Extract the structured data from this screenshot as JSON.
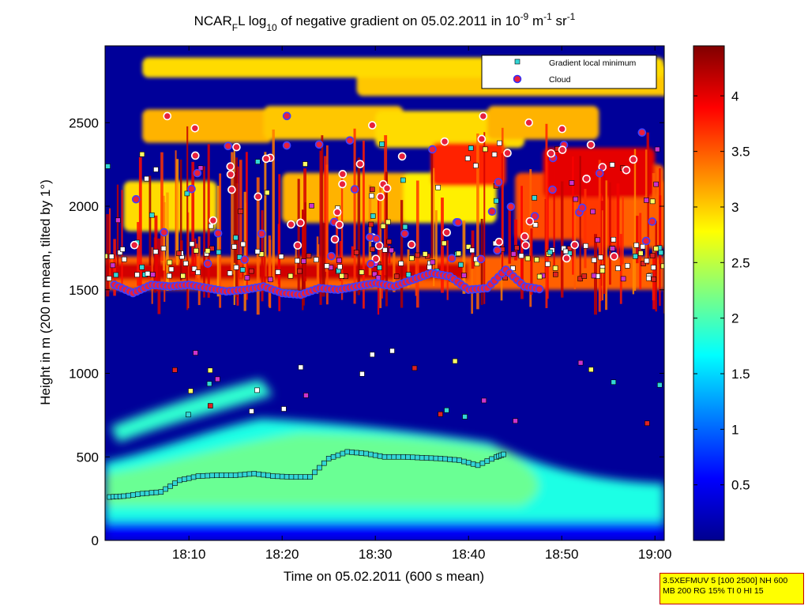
{
  "chart_data": {
    "type": "heatmap",
    "title": {
      "parts": [
        {
          "text": "NCAR"
        },
        {
          "text": "F",
          "sub": true
        },
        {
          "text": "L log"
        },
        {
          "text": "10",
          "sub": true
        },
        {
          "text": " of negative gradient on 05.02.2011 in 10"
        },
        {
          "text": "-9",
          "sup": true
        },
        {
          "text": " m"
        },
        {
          "text": "-1",
          "sup": true
        },
        {
          "text": " sr"
        },
        {
          "text": "-1",
          "sup": true
        }
      ]
    },
    "xlabel": "Time on 05.02.2011 (600 s mean)",
    "ylabel": "Height in m (200 m mean, tilted by 1°)",
    "x_tick_labels": [
      "18:10",
      "18:20",
      "18:30",
      "18:40",
      "18:50",
      "19:00"
    ],
    "x_tick_minutes": [
      10,
      20,
      30,
      40,
      50,
      60
    ],
    "x_range_minutes": [
      1,
      61
    ],
    "y_ticks": [
      0,
      500,
      1000,
      1500,
      2000,
      2500
    ],
    "y_range": [
      0,
      2960
    ],
    "colorbar": {
      "ticks": [
        0.5,
        1,
        1.5,
        2,
        2.5,
        3,
        3.5,
        4
      ],
      "tick_labels": [
        "0.5",
        "1",
        "1.5",
        "2",
        "2.5",
        "3",
        "3.5",
        "4"
      ],
      "range": [
        0,
        4.45
      ],
      "colormap": "jet"
    },
    "legend": {
      "placement": "top-right",
      "entries": [
        {
          "label": "Gradient local minimum",
          "marker": "square",
          "color": "#33d6d6"
        },
        {
          "label": "Cloud",
          "marker": "circle",
          "color": "#e8203c",
          "edge": "#3030ff"
        }
      ]
    },
    "layers": {
      "cloud_base_mean_m": 1540,
      "aerosol_layer_top_m": 560,
      "upper_cloud_band_m": [
        1600,
        2450
      ]
    },
    "series": [
      {
        "name": "Gradient local minimum",
        "x_minutes": [
          1.5,
          3,
          5,
          7,
          9,
          11,
          13,
          15,
          17,
          19,
          21,
          23,
          25,
          27,
          29,
          31,
          33,
          35,
          37,
          39,
          41,
          43,
          44
        ],
        "y": [
          260,
          265,
          280,
          290,
          360,
          385,
          390,
          390,
          400,
          385,
          380,
          380,
          490,
          530,
          520,
          500,
          500,
          495,
          490,
          480,
          450,
          500,
          520
        ]
      },
      {
        "name": "Cloud",
        "x_minutes": [
          2,
          4,
          6,
          8,
          10,
          12,
          14,
          16,
          18,
          20,
          22,
          24,
          26,
          28,
          30,
          32,
          34,
          36,
          38,
          40,
          42,
          44,
          46,
          48
        ],
        "y": [
          1530,
          1480,
          1530,
          1520,
          1530,
          1510,
          1490,
          1500,
          1520,
          1480,
          1470,
          1510,
          1500,
          1520,
          1540,
          1520,
          1560,
          1600,
          1580,
          1500,
          1510,
          1620,
          1520,
          1500
        ]
      }
    ]
  },
  "param_box": {
    "line1": "3.5XEFMUV 5 [100 2500] NH 600",
    "line2": "MB 200 RG 15% TI 0 HI 15"
  }
}
